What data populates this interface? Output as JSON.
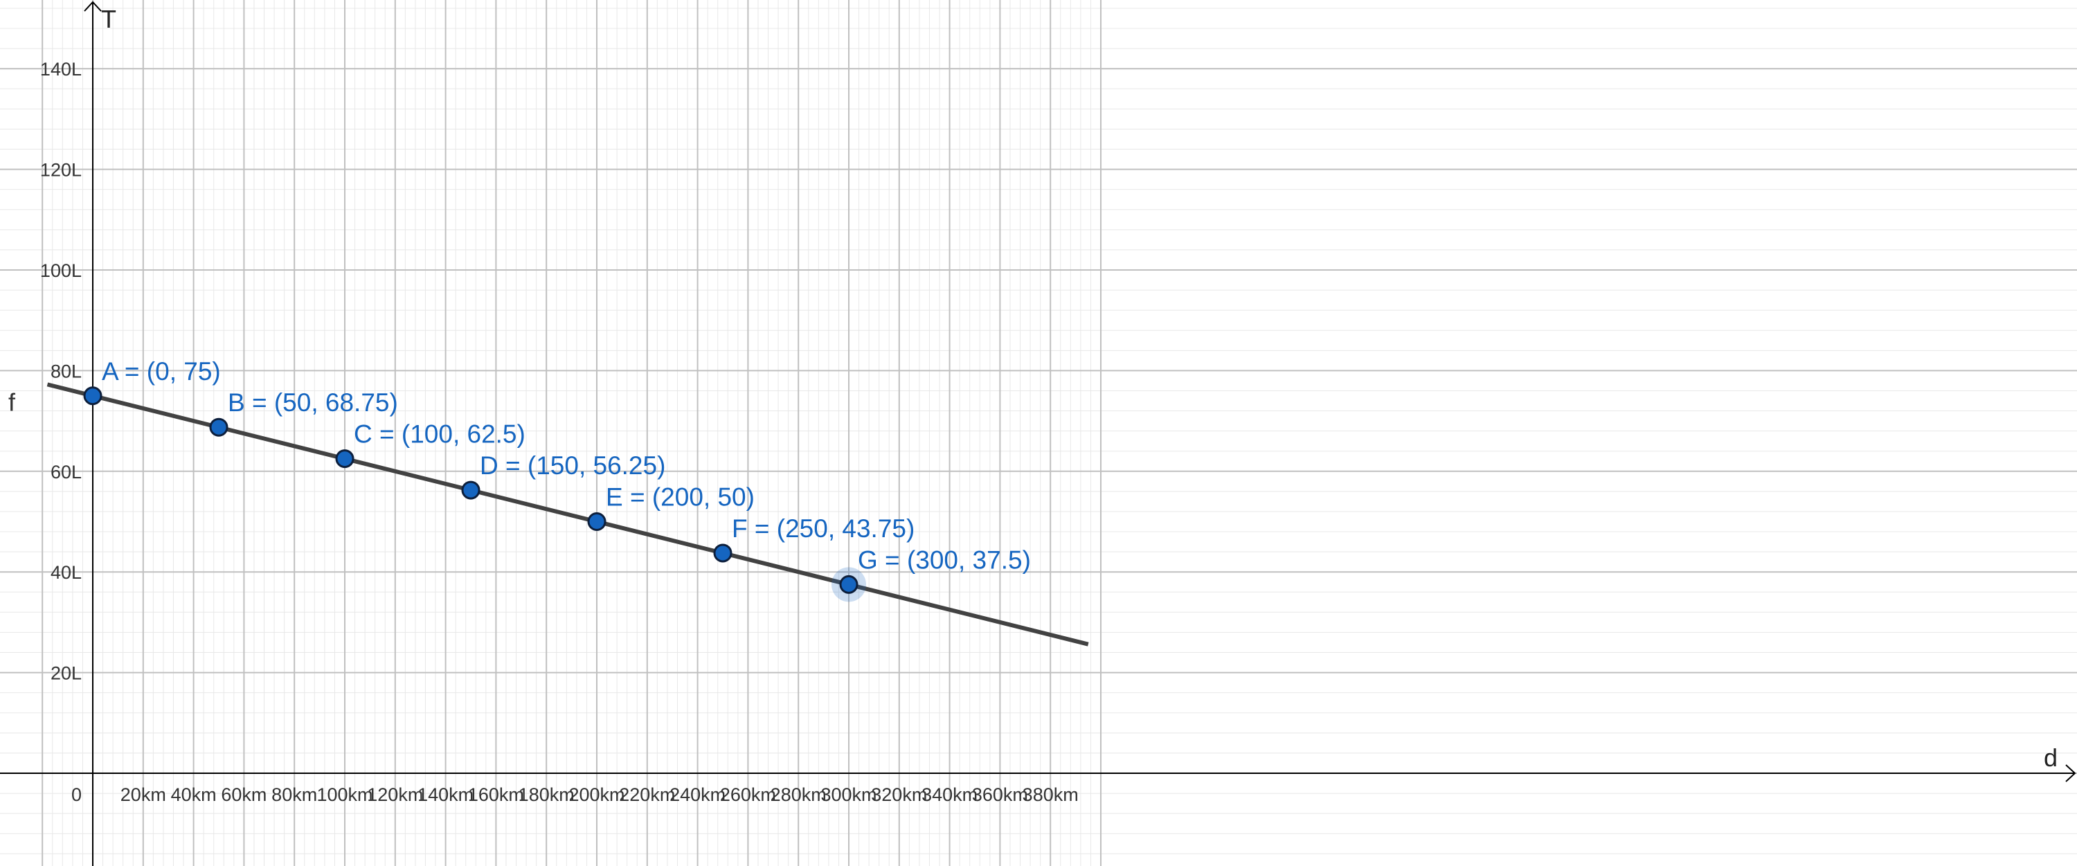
{
  "chart_data": {
    "type": "line",
    "xlabel": "d",
    "ylabel": "T",
    "x_unit": "km",
    "y_unit": "L",
    "xlim": [
      -18,
      395
    ],
    "ylim": [
      -18,
      153
    ],
    "x_ticks": [
      20,
      40,
      60,
      80,
      100,
      120,
      140,
      160,
      180,
      200,
      220,
      240,
      260,
      280,
      300,
      320,
      340,
      360,
      380
    ],
    "x_tick_labels": [
      "20km",
      "40km",
      "60km",
      "80km",
      "100km",
      "120km",
      "140km",
      "160km",
      "180km",
      "200km",
      "220km",
      "240km",
      "260km",
      "280km",
      "300km",
      "320km",
      "340km",
      "360km",
      "380km"
    ],
    "y_ticks": [
      20,
      40,
      60,
      80,
      100,
      120,
      140
    ],
    "y_tick_labels": [
      "20L",
      "40L",
      "60L",
      "80L",
      "100L",
      "120L",
      "140L"
    ],
    "origin_label": "0",
    "grid": true,
    "minor_grid": true,
    "function": {
      "name": "f",
      "slope": -0.125,
      "intercept": 75
    },
    "points": [
      {
        "name": "A",
        "x": 0,
        "y": 75,
        "label": "A = (0, 75)"
      },
      {
        "name": "B",
        "x": 50,
        "y": 68.75,
        "label": "B = (50, 68.75)"
      },
      {
        "name": "C",
        "x": 100,
        "y": 62.5,
        "label": "C = (100, 62.5)"
      },
      {
        "name": "D",
        "x": 150,
        "y": 56.25,
        "label": "D = (150, 56.25)"
      },
      {
        "name": "E",
        "x": 200,
        "y": 50,
        "label": "E = (200, 50)"
      },
      {
        "name": "F",
        "x": 250,
        "y": 43.75,
        "label": "F = (250, 43.75)"
      },
      {
        "name": "G",
        "x": 300,
        "y": 37.5,
        "label": "G = (300, 37.5)",
        "highlighted": true
      }
    ],
    "colors": {
      "point_fill": "#1565c0",
      "point_label": "#1565c0",
      "line": "#424242",
      "axis": "#000000",
      "major_grid": "#c0c0c0",
      "minor_grid": "#e8e8e8"
    }
  }
}
